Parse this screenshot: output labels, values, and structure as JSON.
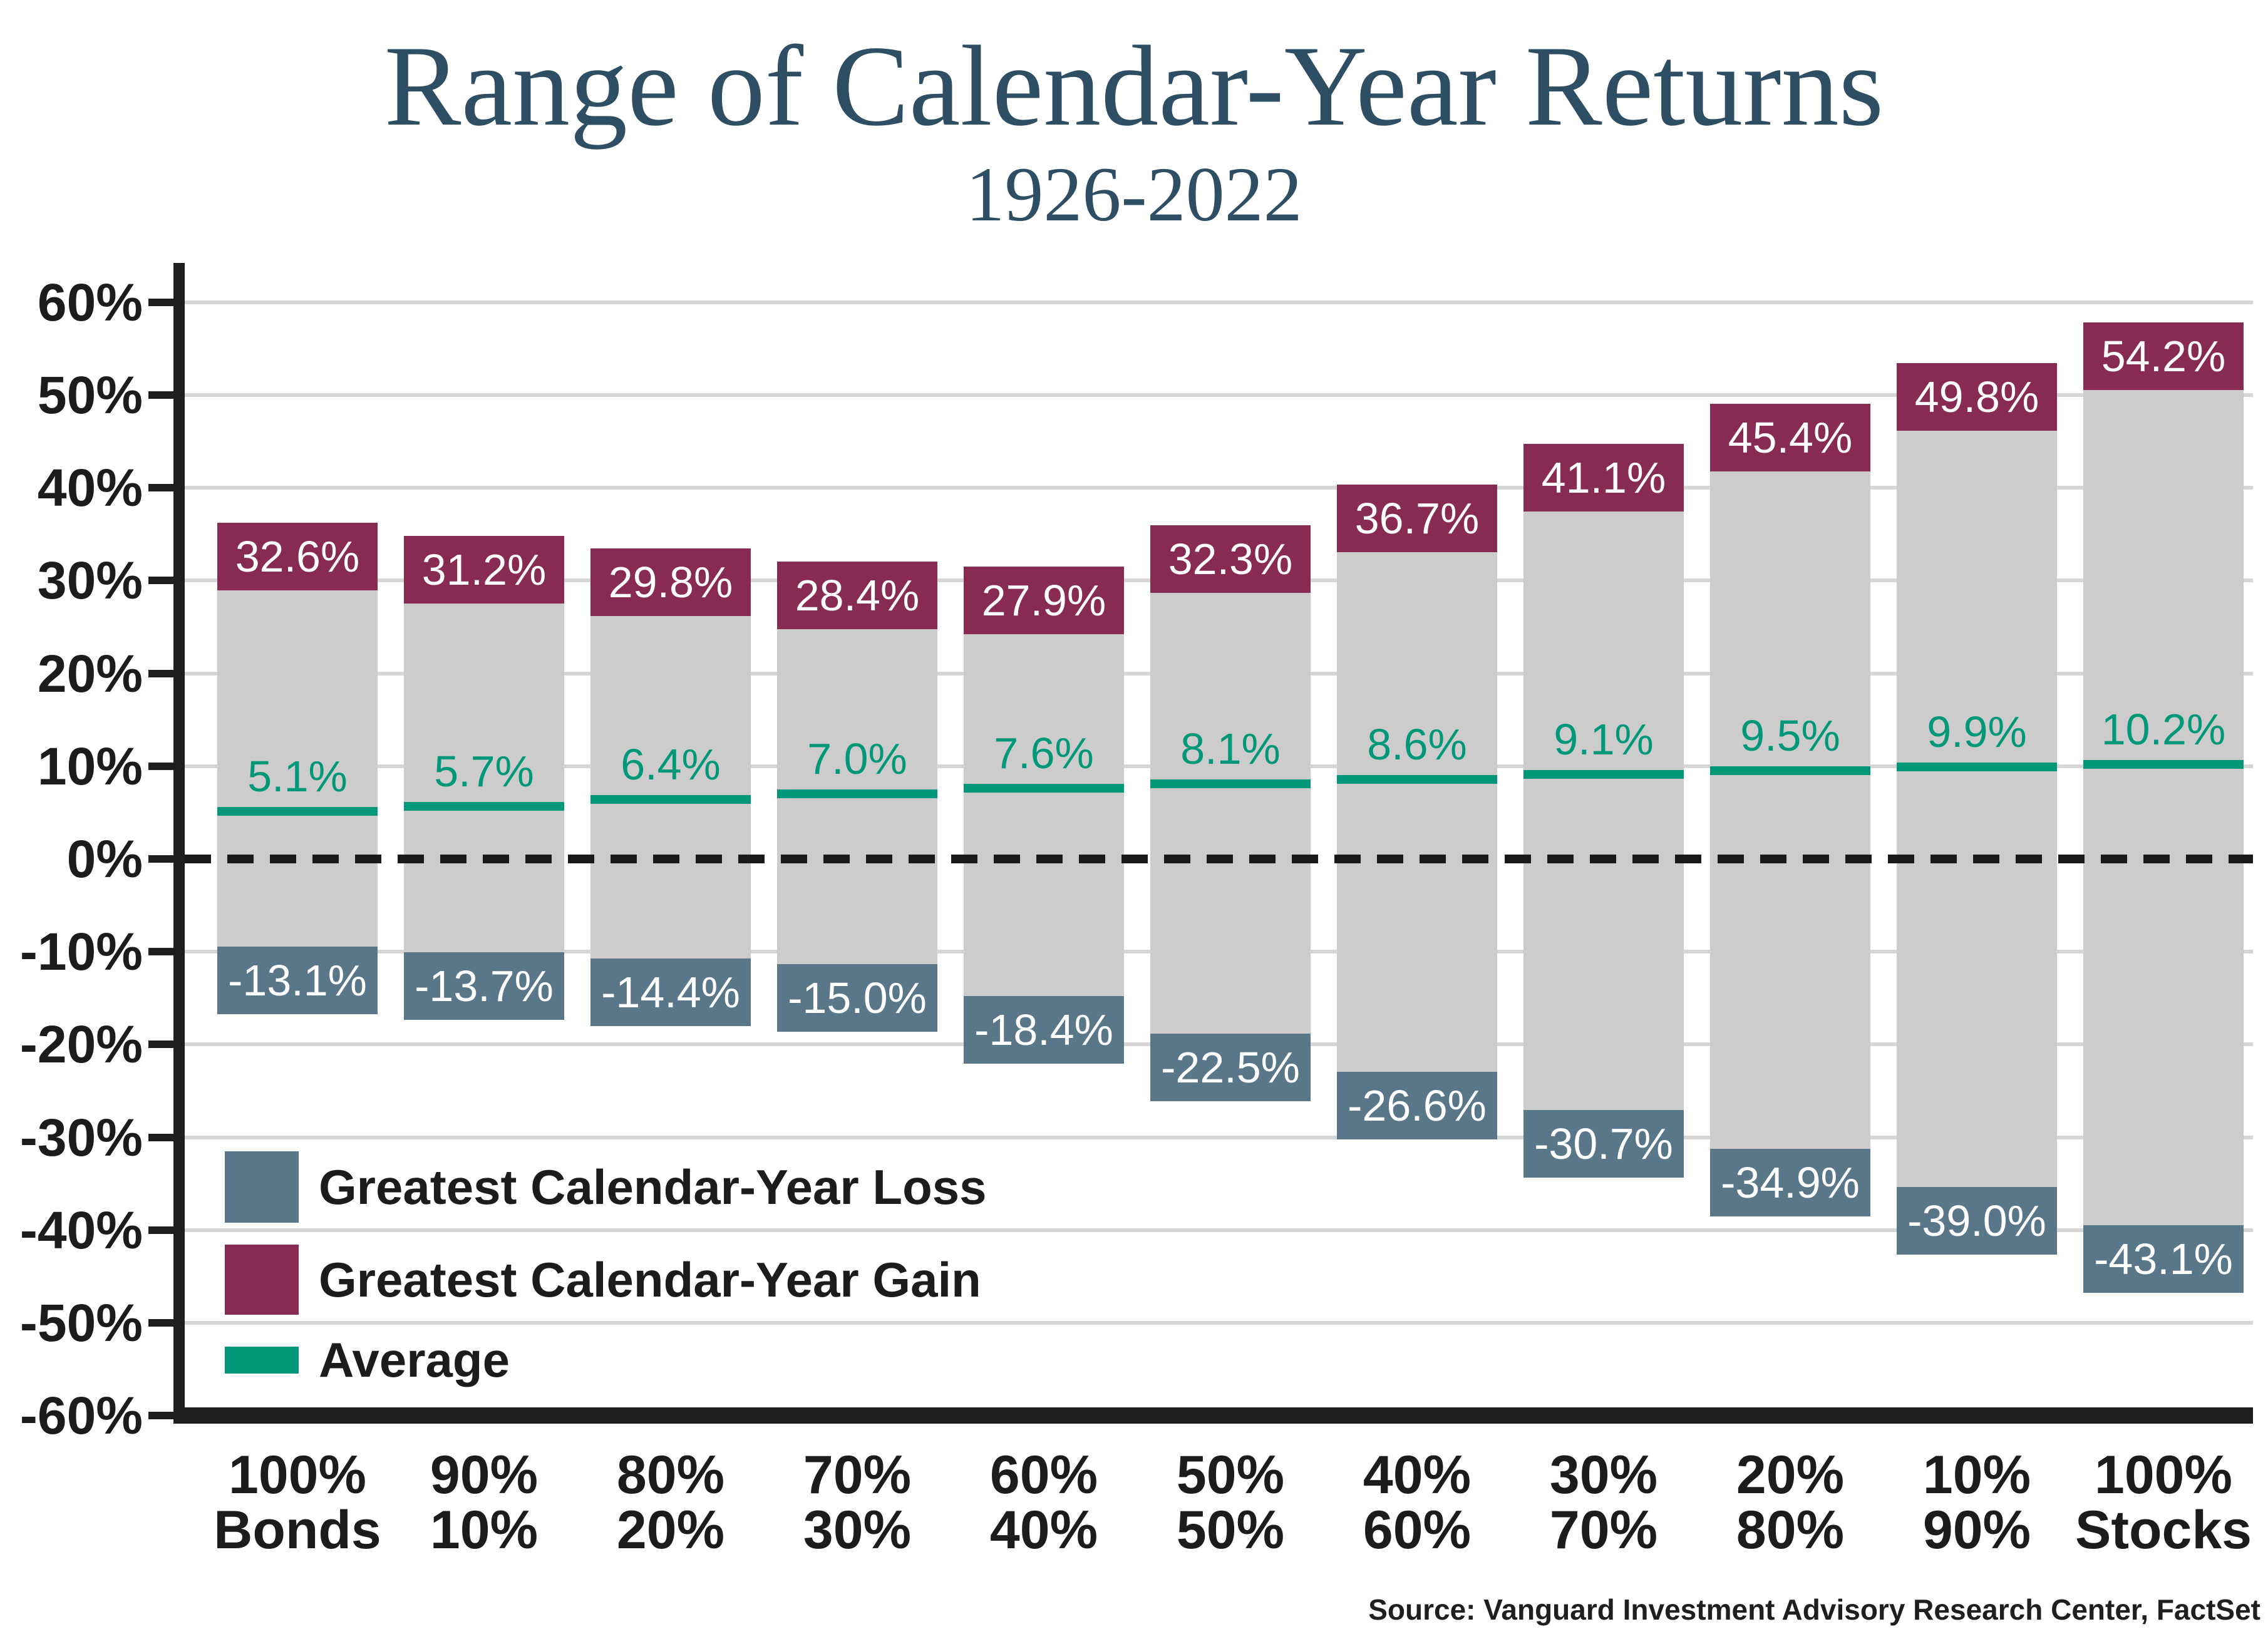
{
  "title": {
    "text": "Range of Calendar-Year Returns",
    "subtitle": "1926-2022"
  },
  "source": "Source: Vanguard Investment Advisory Research Center, FactSet",
  "legend": [
    {
      "key": "loss",
      "label": "Greatest Calendar-Year Loss",
      "color": "#5a7689"
    },
    {
      "key": "gain",
      "label": "Greatest Calendar-Year Gain",
      "color": "#872b52"
    },
    {
      "key": "average",
      "label": "Average",
      "color": "#009878"
    }
  ],
  "colors": {
    "gain": "#872b52",
    "loss": "#5a7689",
    "average": "#009878",
    "bar_body": "#cccccc",
    "gridline": "#d6d6d6",
    "axis": "#1e1e1e",
    "title": "#2d4e63",
    "value_text": "#ffffff"
  },
  "chart_data": {
    "type": "bar",
    "title": "Range of Calendar-Year Returns",
    "subtitle": "1926-2022",
    "categories": [
      [
        "100%",
        "Bonds"
      ],
      [
        "90%",
        "10%"
      ],
      [
        "80%",
        "20%"
      ],
      [
        "70%",
        "30%"
      ],
      [
        "60%",
        "40%"
      ],
      [
        "50%",
        "50%"
      ],
      [
        "40%",
        "60%"
      ],
      [
        "30%",
        "70%"
      ],
      [
        "20%",
        "80%"
      ],
      [
        "10%",
        "90%"
      ],
      [
        "100%",
        "Stocks"
      ]
    ],
    "series": [
      {
        "name": "Greatest Calendar-Year Gain",
        "values": [
          32.6,
          31.2,
          29.8,
          28.4,
          27.9,
          32.3,
          36.7,
          41.1,
          45.4,
          49.8,
          54.2
        ]
      },
      {
        "name": "Greatest Calendar-Year Loss",
        "values": [
          -13.1,
          -13.7,
          -14.4,
          -15.0,
          -18.4,
          -22.5,
          -26.6,
          -30.7,
          -34.9,
          -39.0,
          -43.1
        ]
      },
      {
        "name": "Average",
        "values": [
          5.1,
          5.7,
          6.4,
          7.0,
          7.6,
          8.1,
          8.6,
          9.1,
          9.5,
          9.9,
          10.2
        ]
      }
    ],
    "ylim": [
      -60,
      60
    ],
    "ytick_step": 10,
    "yticks": [
      "60%",
      "50%",
      "40%",
      "30%",
      "20%",
      "10%",
      "0%",
      "-10%",
      "-20%",
      "-30%",
      "-40%",
      "-50%",
      "-60%"
    ],
    "grid": true,
    "zero_line": "dashed",
    "legend_position": "lower-left"
  }
}
